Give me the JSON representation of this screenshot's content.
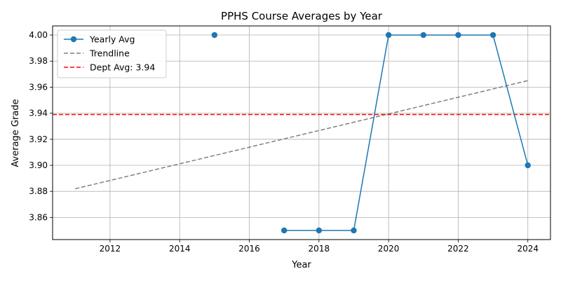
{
  "chart_data": {
    "type": "line",
    "title": "PPHS Course Averages by Year",
    "xlabel": "Year",
    "ylabel": "Average Grade",
    "xlim": [
      2010.35,
      2024.65
    ],
    "ylim": [
      3.843,
      4.007
    ],
    "x_ticks": [
      2012,
      2014,
      2016,
      2018,
      2020,
      2022,
      2024
    ],
    "y_ticks": [
      3.86,
      3.88,
      3.9,
      3.92,
      3.94,
      3.96,
      3.98,
      4.0
    ],
    "x_tick_labels": [
      "2012",
      "2014",
      "2016",
      "2018",
      "2020",
      "2022",
      "2024"
    ],
    "y_tick_labels": [
      "3.86",
      "3.88",
      "3.90",
      "3.92",
      "3.94",
      "3.96",
      "3.98",
      "4.00"
    ],
    "grid": true,
    "legend_position": "top-left",
    "series": [
      {
        "name": "Yearly Avg",
        "style": "solid-line-with-markers",
        "color": "#1f77b4",
        "points": [
          {
            "x": 2015,
            "y": 4.0
          },
          {
            "x": 2017,
            "y": 3.85
          },
          {
            "x": 2018,
            "y": 3.85
          },
          {
            "x": 2019,
            "y": 3.85
          },
          {
            "x": 2020,
            "y": 4.0
          },
          {
            "x": 2021,
            "y": 4.0
          },
          {
            "x": 2022,
            "y": 4.0
          },
          {
            "x": 2023,
            "y": 4.0
          },
          {
            "x": 2024,
            "y": 3.9
          }
        ],
        "line_segments": [
          [
            2017,
            2018,
            2019,
            2020,
            2021,
            2022,
            2023,
            2024
          ]
        ]
      },
      {
        "name": "Trendline",
        "style": "dashed",
        "color": "#808080",
        "points": [
          {
            "x": 2011,
            "y": 3.882
          },
          {
            "x": 2024,
            "y": 3.965
          }
        ]
      },
      {
        "name": "Dept Avg: 3.94",
        "style": "dashed-horizontal",
        "color": "#ff0000",
        "y": 3.939
      }
    ]
  }
}
